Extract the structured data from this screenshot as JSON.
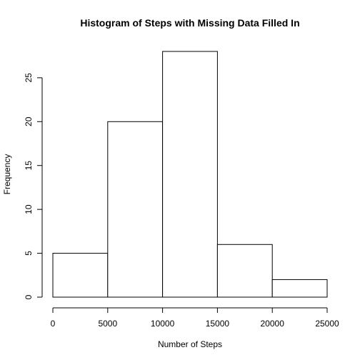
{
  "chart_data": {
    "type": "bar",
    "title": "Histogram of Steps with Missing Data Filled In",
    "xlabel": "Number of Steps",
    "ylabel": "Frequency",
    "bins": [
      {
        "start": 0,
        "end": 5000,
        "value": 5
      },
      {
        "start": 5000,
        "end": 10000,
        "value": 20
      },
      {
        "start": 10000,
        "end": 15000,
        "value": 28
      },
      {
        "start": 15000,
        "end": 20000,
        "value": 6
      },
      {
        "start": 20000,
        "end": 25000,
        "value": 2
      }
    ],
    "xlim": [
      0,
      25000
    ],
    "ylim": [
      0,
      28
    ],
    "x_ticks": [
      0,
      5000,
      10000,
      15000,
      20000,
      25000
    ],
    "y_ticks": [
      0,
      5,
      10,
      15,
      20,
      25
    ],
    "grid": false,
    "colors": {
      "bar_fill": "#ffffff",
      "bar_stroke": "#000000"
    }
  }
}
